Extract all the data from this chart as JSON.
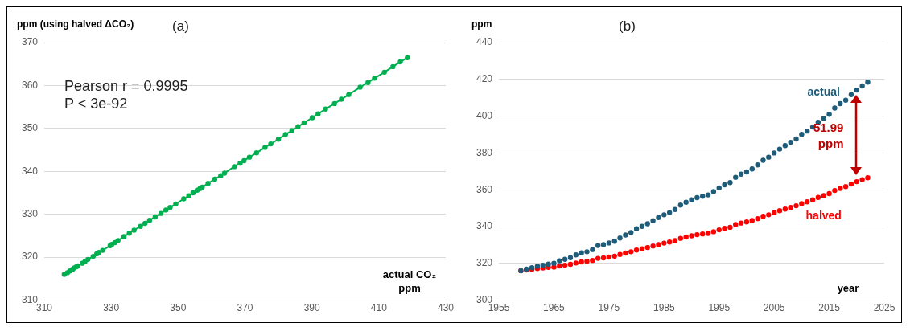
{
  "chart_data": [
    {
      "type": "line",
      "title": "(a)",
      "ylabel": "ppm (using halved ΔCO₂)",
      "xlabel": "actual CO₂ ppm",
      "x": [
        315.98,
        316.91,
        317.64,
        318.45,
        318.99,
        319.62,
        320.04,
        321.37,
        322.18,
        323.05,
        324.62,
        325.68,
        326.32,
        327.46,
        329.68,
        330.19,
        331.12,
        332.03,
        333.84,
        335.41,
        336.84,
        338.76,
        340.12,
        341.48,
        343.15,
        344.87,
        346.35,
        347.61,
        349.31,
        351.69,
        353.2,
        354.45,
        355.7,
        356.54,
        357.21,
        358.96,
        360.97,
        362.74,
        363.88,
        366.84,
        368.54,
        369.71,
        371.32,
        373.45,
        375.98,
        377.7,
        379.98,
        382.09,
        384.02,
        385.83,
        387.64,
        390.1,
        391.85,
        394.06,
        396.74,
        398.81,
        401.01,
        404.41,
        406.76,
        408.72,
        411.65,
        414.21,
        416.41,
        418.53
      ],
      "series": [
        {
          "color": "#00b050",
          "values": [
            316.0,
            316.4,
            316.8,
            317.2,
            317.5,
            317.8,
            318.0,
            318.6,
            319.0,
            319.5,
            320.2,
            320.8,
            321.1,
            321.6,
            322.7,
            323.0,
            323.4,
            323.9,
            324.8,
            325.6,
            326.3,
            327.2,
            327.9,
            328.6,
            329.4,
            330.2,
            331.0,
            331.6,
            332.4,
            333.6,
            334.3,
            335.0,
            335.6,
            336.0,
            336.3,
            337.2,
            338.2,
            339.0,
            339.6,
            341.1,
            341.9,
            342.5,
            343.3,
            344.3,
            345.6,
            346.4,
            347.5,
            348.6,
            349.5,
            350.4,
            351.3,
            352.5,
            353.4,
            354.5,
            355.8,
            356.8,
            357.9,
            359.6,
            360.7,
            361.7,
            363.1,
            364.4,
            365.5,
            366.5
          ]
        }
      ],
      "marker": "circle",
      "xlim": [
        310,
        430
      ],
      "xticks": [
        310,
        330,
        350,
        370,
        390,
        410,
        430
      ],
      "ylim": [
        310,
        370
      ],
      "yticks": [
        310,
        320,
        330,
        340,
        350,
        360,
        370
      ],
      "grid": "y",
      "annotations": [
        "Pearson r = 0.9995",
        "P < 3e-92"
      ]
    },
    {
      "type": "scatter",
      "title": "(b)",
      "ylabel": "ppm",
      "xlabel": "year",
      "x": [
        1959,
        1960,
        1961,
        1962,
        1963,
        1964,
        1965,
        1966,
        1967,
        1968,
        1969,
        1970,
        1971,
        1972,
        1973,
        1974,
        1975,
        1976,
        1977,
        1978,
        1979,
        1980,
        1981,
        1982,
        1983,
        1984,
        1985,
        1986,
        1987,
        1988,
        1989,
        1990,
        1991,
        1992,
        1993,
        1994,
        1995,
        1996,
        1997,
        1998,
        1999,
        2000,
        2001,
        2002,
        2003,
        2004,
        2005,
        2006,
        2007,
        2008,
        2009,
        2010,
        2011,
        2012,
        2013,
        2014,
        2015,
        2016,
        2017,
        2018,
        2019,
        2020,
        2021,
        2022
      ],
      "series": [
        {
          "name": "actual",
          "color": "#1f5c7a",
          "values": [
            316.0,
            316.9,
            317.6,
            318.5,
            319.0,
            319.6,
            320.0,
            321.4,
            322.2,
            323.1,
            324.6,
            325.7,
            326.3,
            327.5,
            329.7,
            330.2,
            331.1,
            332.0,
            333.8,
            335.4,
            336.8,
            338.8,
            340.1,
            341.5,
            343.2,
            344.9,
            346.4,
            347.6,
            349.3,
            351.7,
            353.2,
            354.5,
            355.7,
            356.5,
            357.2,
            359.0,
            361.0,
            362.7,
            363.9,
            366.8,
            368.5,
            369.7,
            371.3,
            373.5,
            376.0,
            377.7,
            380.0,
            382.1,
            384.0,
            385.8,
            387.6,
            390.1,
            391.9,
            394.1,
            396.7,
            398.8,
            401.0,
            404.4,
            406.8,
            408.7,
            411.7,
            414.2,
            416.4,
            418.5
          ]
        },
        {
          "name": "halved",
          "color": "#ff0000",
          "values": [
            316.0,
            316.4,
            316.8,
            317.2,
            317.5,
            317.8,
            318.0,
            318.6,
            319.0,
            319.5,
            320.2,
            320.8,
            321.1,
            321.6,
            322.7,
            323.0,
            323.4,
            323.9,
            324.8,
            325.6,
            326.3,
            327.2,
            327.9,
            328.6,
            329.4,
            330.2,
            331.0,
            331.6,
            332.4,
            333.6,
            334.3,
            335.0,
            335.6,
            336.0,
            336.3,
            337.2,
            338.2,
            339.0,
            339.6,
            341.1,
            341.9,
            342.5,
            343.3,
            344.3,
            345.6,
            346.4,
            347.5,
            348.6,
            349.5,
            350.4,
            351.3,
            352.5,
            353.4,
            354.5,
            355.8,
            356.8,
            357.9,
            359.6,
            360.7,
            361.7,
            363.1,
            364.4,
            365.5,
            366.5
          ]
        }
      ],
      "marker": "circle",
      "xlim": [
        1955,
        2025
      ],
      "xticks": [
        1955,
        1965,
        1975,
        1985,
        1995,
        2005,
        2015,
        2025
      ],
      "ylim": [
        300,
        440
      ],
      "yticks": [
        300,
        320,
        340,
        360,
        380,
        400,
        420,
        440
      ],
      "grid": "y",
      "annotations": [
        "51.99 ppm"
      ]
    }
  ]
}
